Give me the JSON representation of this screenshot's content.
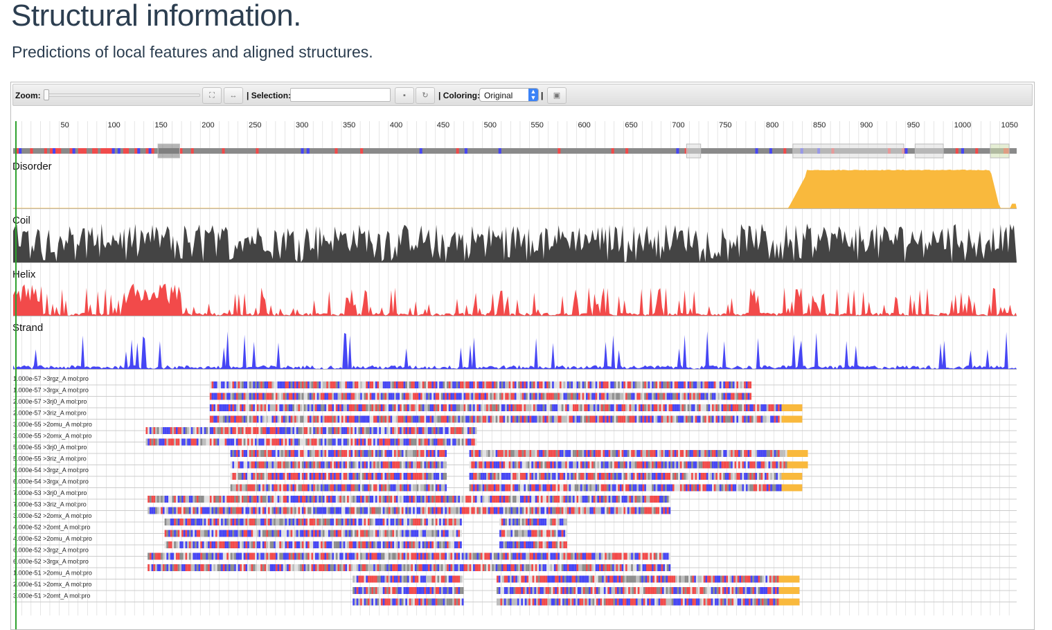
{
  "page": {
    "title": "Structural information.",
    "subtitle": "Predictions of local features and aligned structures."
  },
  "toolbar": {
    "zoom_label": "Zoom:",
    "selection_label": "| Selection:",
    "selection_value": "",
    "coloring_label": "| Coloring:",
    "coloring_value": "Original",
    "separator": "|"
  },
  "colors": {
    "disorder": "#f9b93d",
    "coil": "#444444",
    "helix": "#f24a4a",
    "strand": "#4646f4",
    "cursor": "#2ea12e",
    "grid": "#d4d4d4"
  },
  "ruler": {
    "ticks": [
      50,
      100,
      150,
      200,
      250,
      300,
      350,
      400,
      450,
      500,
      550,
      600,
      650,
      700,
      750,
      800,
      850,
      900,
      950,
      1000,
      1050
    ],
    "length": 1068
  },
  "chart_data": {
    "type": "area",
    "x_range": [
      1,
      1068
    ],
    "series": [
      {
        "name": "Disorder",
        "label": "Disorder",
        "peaks": [
          [
            60,
            0.02
          ],
          [
            830,
            0.3
          ],
          [
            845,
            0.85
          ],
          [
            860,
            1.0
          ],
          [
            1040,
            1.0
          ],
          [
            1048,
            0.1
          ],
          [
            1068,
            0.15
          ]
        ]
      },
      {
        "name": "Coil",
        "label": "Coil"
      },
      {
        "name": "Helix",
        "label": "Helix"
      },
      {
        "name": "Strand",
        "label": "Strand"
      }
    ]
  },
  "alignments": [
    {
      "label": "1.000e-57 >3rgz_A mol:pro",
      "segments": [
        [
          210,
          785
        ]
      ]
    },
    {
      "label": "1.000e-57 >3rgx_A mol:pro",
      "segments": [
        [
          210,
          785
        ]
      ]
    },
    {
      "label": "2.000e-57 >3rj0_A mol:pro",
      "segments": [
        [
          210,
          840
        ]
      ]
    },
    {
      "label": "2.000e-57 >3riz_A mol:pro",
      "segments": [
        [
          210,
          840
        ]
      ]
    },
    {
      "label": "3.000e-55 >2omu_A mol:pro",
      "segments": [
        [
          142,
          493
        ]
      ]
    },
    {
      "label": "3.000e-55 >2omx_A mol:pro",
      "segments": [
        [
          142,
          493
        ]
      ]
    },
    {
      "label": "5.000e-55 >3rj0_A mol:pro",
      "segments": [
        [
          232,
          461
        ],
        [
          486,
          846
        ]
      ]
    },
    {
      "label": "5.000e-55 >3riz_A mol:pro",
      "segments": [
        [
          232,
          461
        ],
        [
          486,
          846
        ]
      ]
    },
    {
      "label": "6.000e-54 >3rgz_A mol:pro",
      "segments": [
        [
          232,
          461
        ],
        [
          486,
          840
        ]
      ]
    },
    {
      "label": "6.000e-54 >3rgx_A mol:pro",
      "segments": [
        [
          232,
          461
        ],
        [
          486,
          840
        ]
      ]
    },
    {
      "label": "7.000e-53 >3rj0_A mol:pro",
      "segments": [
        [
          144,
          700
        ]
      ]
    },
    {
      "label": "7.000e-53 >3riz_A mol:pro",
      "segments": [
        [
          144,
          700
        ]
      ]
    },
    {
      "label": "3.000e-52 >2omx_A mol:pro",
      "segments": [
        [
          162,
          478
        ],
        [
          518,
          590
        ]
      ]
    },
    {
      "label": "4.000e-52 >2omt_A mol:pro",
      "segments": [
        [
          162,
          478
        ],
        [
          518,
          590
        ]
      ]
    },
    {
      "label": "4.000e-52 >2omu_A mol:pro",
      "segments": [
        [
          162,
          478
        ],
        [
          518,
          590
        ]
      ]
    },
    {
      "label": "6.000e-52 >3rgz_A mol:pro",
      "segments": [
        [
          144,
          700
        ]
      ]
    },
    {
      "label": "6.000e-52 >3rgx_A mol:pro",
      "segments": [
        [
          144,
          700
        ]
      ]
    },
    {
      "label": "1.000e-51 >2omu_A mol:pro",
      "segments": [
        [
          362,
          480
        ],
        [
          515,
          837
        ]
      ]
    },
    {
      "label": "2.000e-51 >2omx_A mol:pro",
      "segments": [
        [
          362,
          480
        ],
        [
          515,
          837
        ]
      ]
    },
    {
      "label": "3.000e-51 >2omt_A mol:pro",
      "segments": [
        [
          362,
          480
        ],
        [
          515,
          837
        ]
      ]
    }
  ]
}
